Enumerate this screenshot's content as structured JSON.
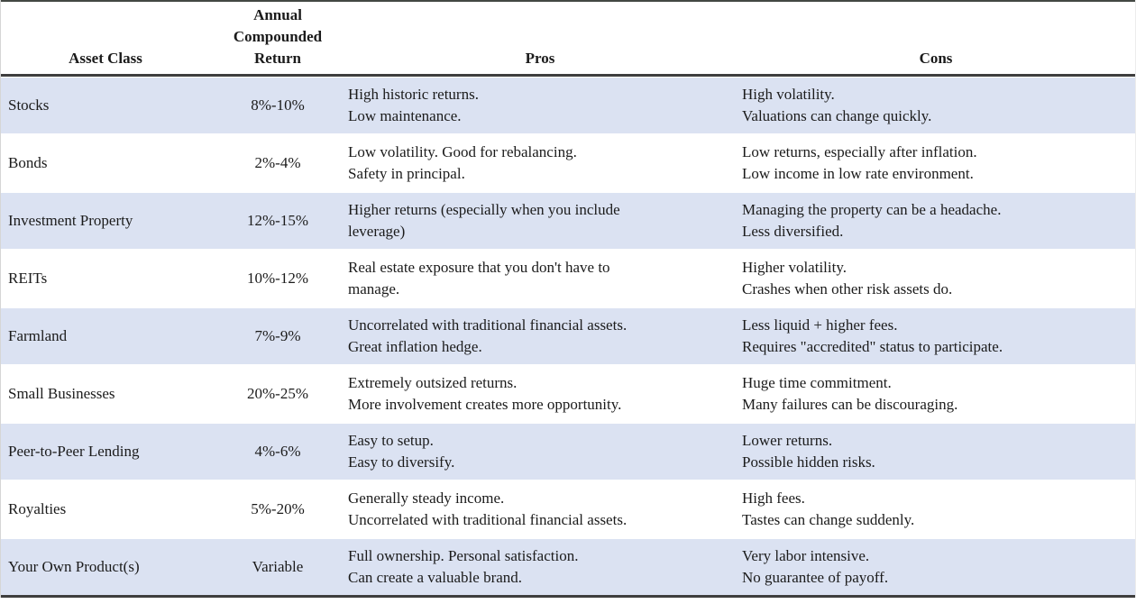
{
  "colors": {
    "stripe_row": "#dbe2f2",
    "rule_dark": "#3e3e3e",
    "text": "#1b1b1b"
  },
  "chart_data": {
    "type": "table",
    "title": "",
    "columns": [
      "Asset Class",
      "Annual\nCompounded\nReturn",
      "Pros",
      "Cons"
    ],
    "rows": [
      {
        "asset": "Stocks",
        "return": "8%-10%",
        "pros": "High historic returns.\nLow maintenance.",
        "cons": "High volatility.\nValuations can change quickly."
      },
      {
        "asset": "Bonds",
        "return": "2%-4%",
        "pros": "Low volatility. Good for rebalancing.\nSafety in principal.",
        "cons": "Low returns, especially after inflation.\nLow income in low rate environment."
      },
      {
        "asset": "Investment Property",
        "return": "12%-15%",
        "pros": "Higher returns (especially when you include\nleverage)",
        "cons": "Managing the property can be a headache.\nLess diversified."
      },
      {
        "asset": "REITs",
        "return": "10%-12%",
        "pros": "Real estate exposure that you don't have to\nmanage.",
        "cons": "Higher volatility.\nCrashes when other risk assets do."
      },
      {
        "asset": "Farmland",
        "return": "7%-9%",
        "pros": "Uncorrelated with traditional financial assets.\nGreat inflation hedge.",
        "cons": "Less liquid + higher fees.\nRequires \"accredited\" status to participate."
      },
      {
        "asset": "Small Businesses",
        "return": "20%-25%",
        "pros": "Extremely outsized returns.\nMore involvement creates more opportunity.",
        "cons": "Huge time commitment.\nMany failures can be discouraging."
      },
      {
        "asset": "Peer-to-Peer Lending",
        "return": "4%-6%",
        "pros": "Easy to setup.\nEasy to diversify.",
        "cons": "Lower returns.\nPossible hidden risks."
      },
      {
        "asset": "Royalties",
        "return": "5%-20%",
        "pros": "Generally steady income.\nUncorrelated with traditional financial assets.",
        "cons": "High fees.\nTastes can change suddenly."
      },
      {
        "asset": "Your Own Product(s)",
        "return": "Variable",
        "pros": "Full ownership. Personal satisfaction.\nCan create a valuable brand.",
        "cons": "Very labor intensive.\nNo guarantee of payoff."
      }
    ]
  }
}
